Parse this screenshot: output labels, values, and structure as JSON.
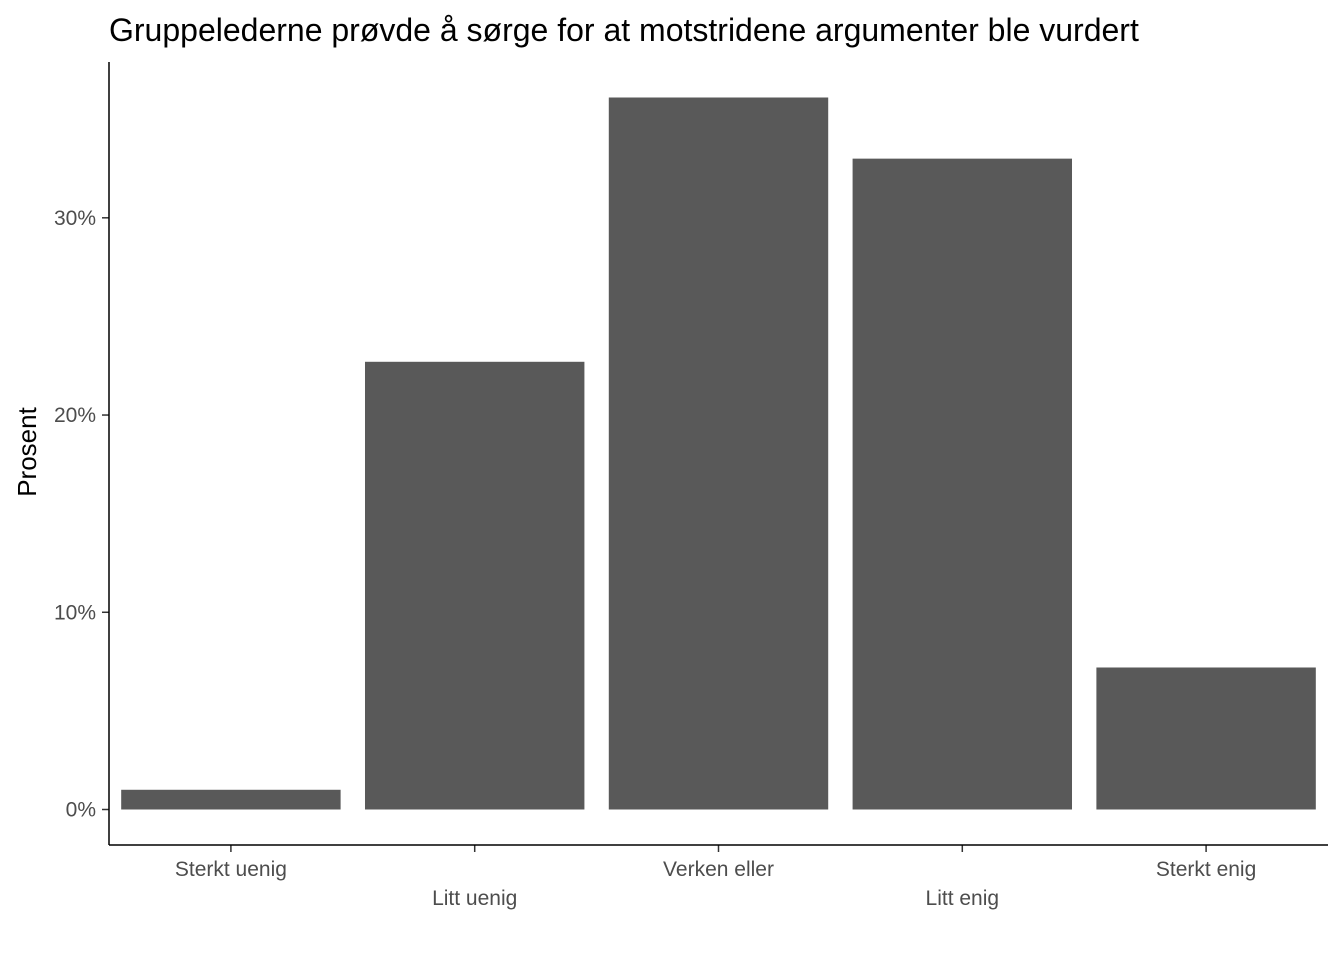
{
  "chart_data": {
    "type": "bar",
    "title": "Gruppelederne prøvde å sørge for at motstridene argumenter ble vurdert",
    "xlabel": "",
    "ylabel": "Prosent",
    "categories": [
      "Sterkt uenig",
      "Litt uenig",
      "Verken eller",
      "Litt enig",
      "Sterkt enig"
    ],
    "values": [
      1.0,
      22.7,
      36.1,
      33.0,
      7.2
    ],
    "ylim": [
      -1.8,
      37.9
    ],
    "yticks": [
      0,
      10,
      20,
      30
    ],
    "ytick_labels": [
      "0%",
      "10%",
      "20%",
      "30%"
    ],
    "bar_color": "#595959",
    "grid": false,
    "legend": "none"
  }
}
